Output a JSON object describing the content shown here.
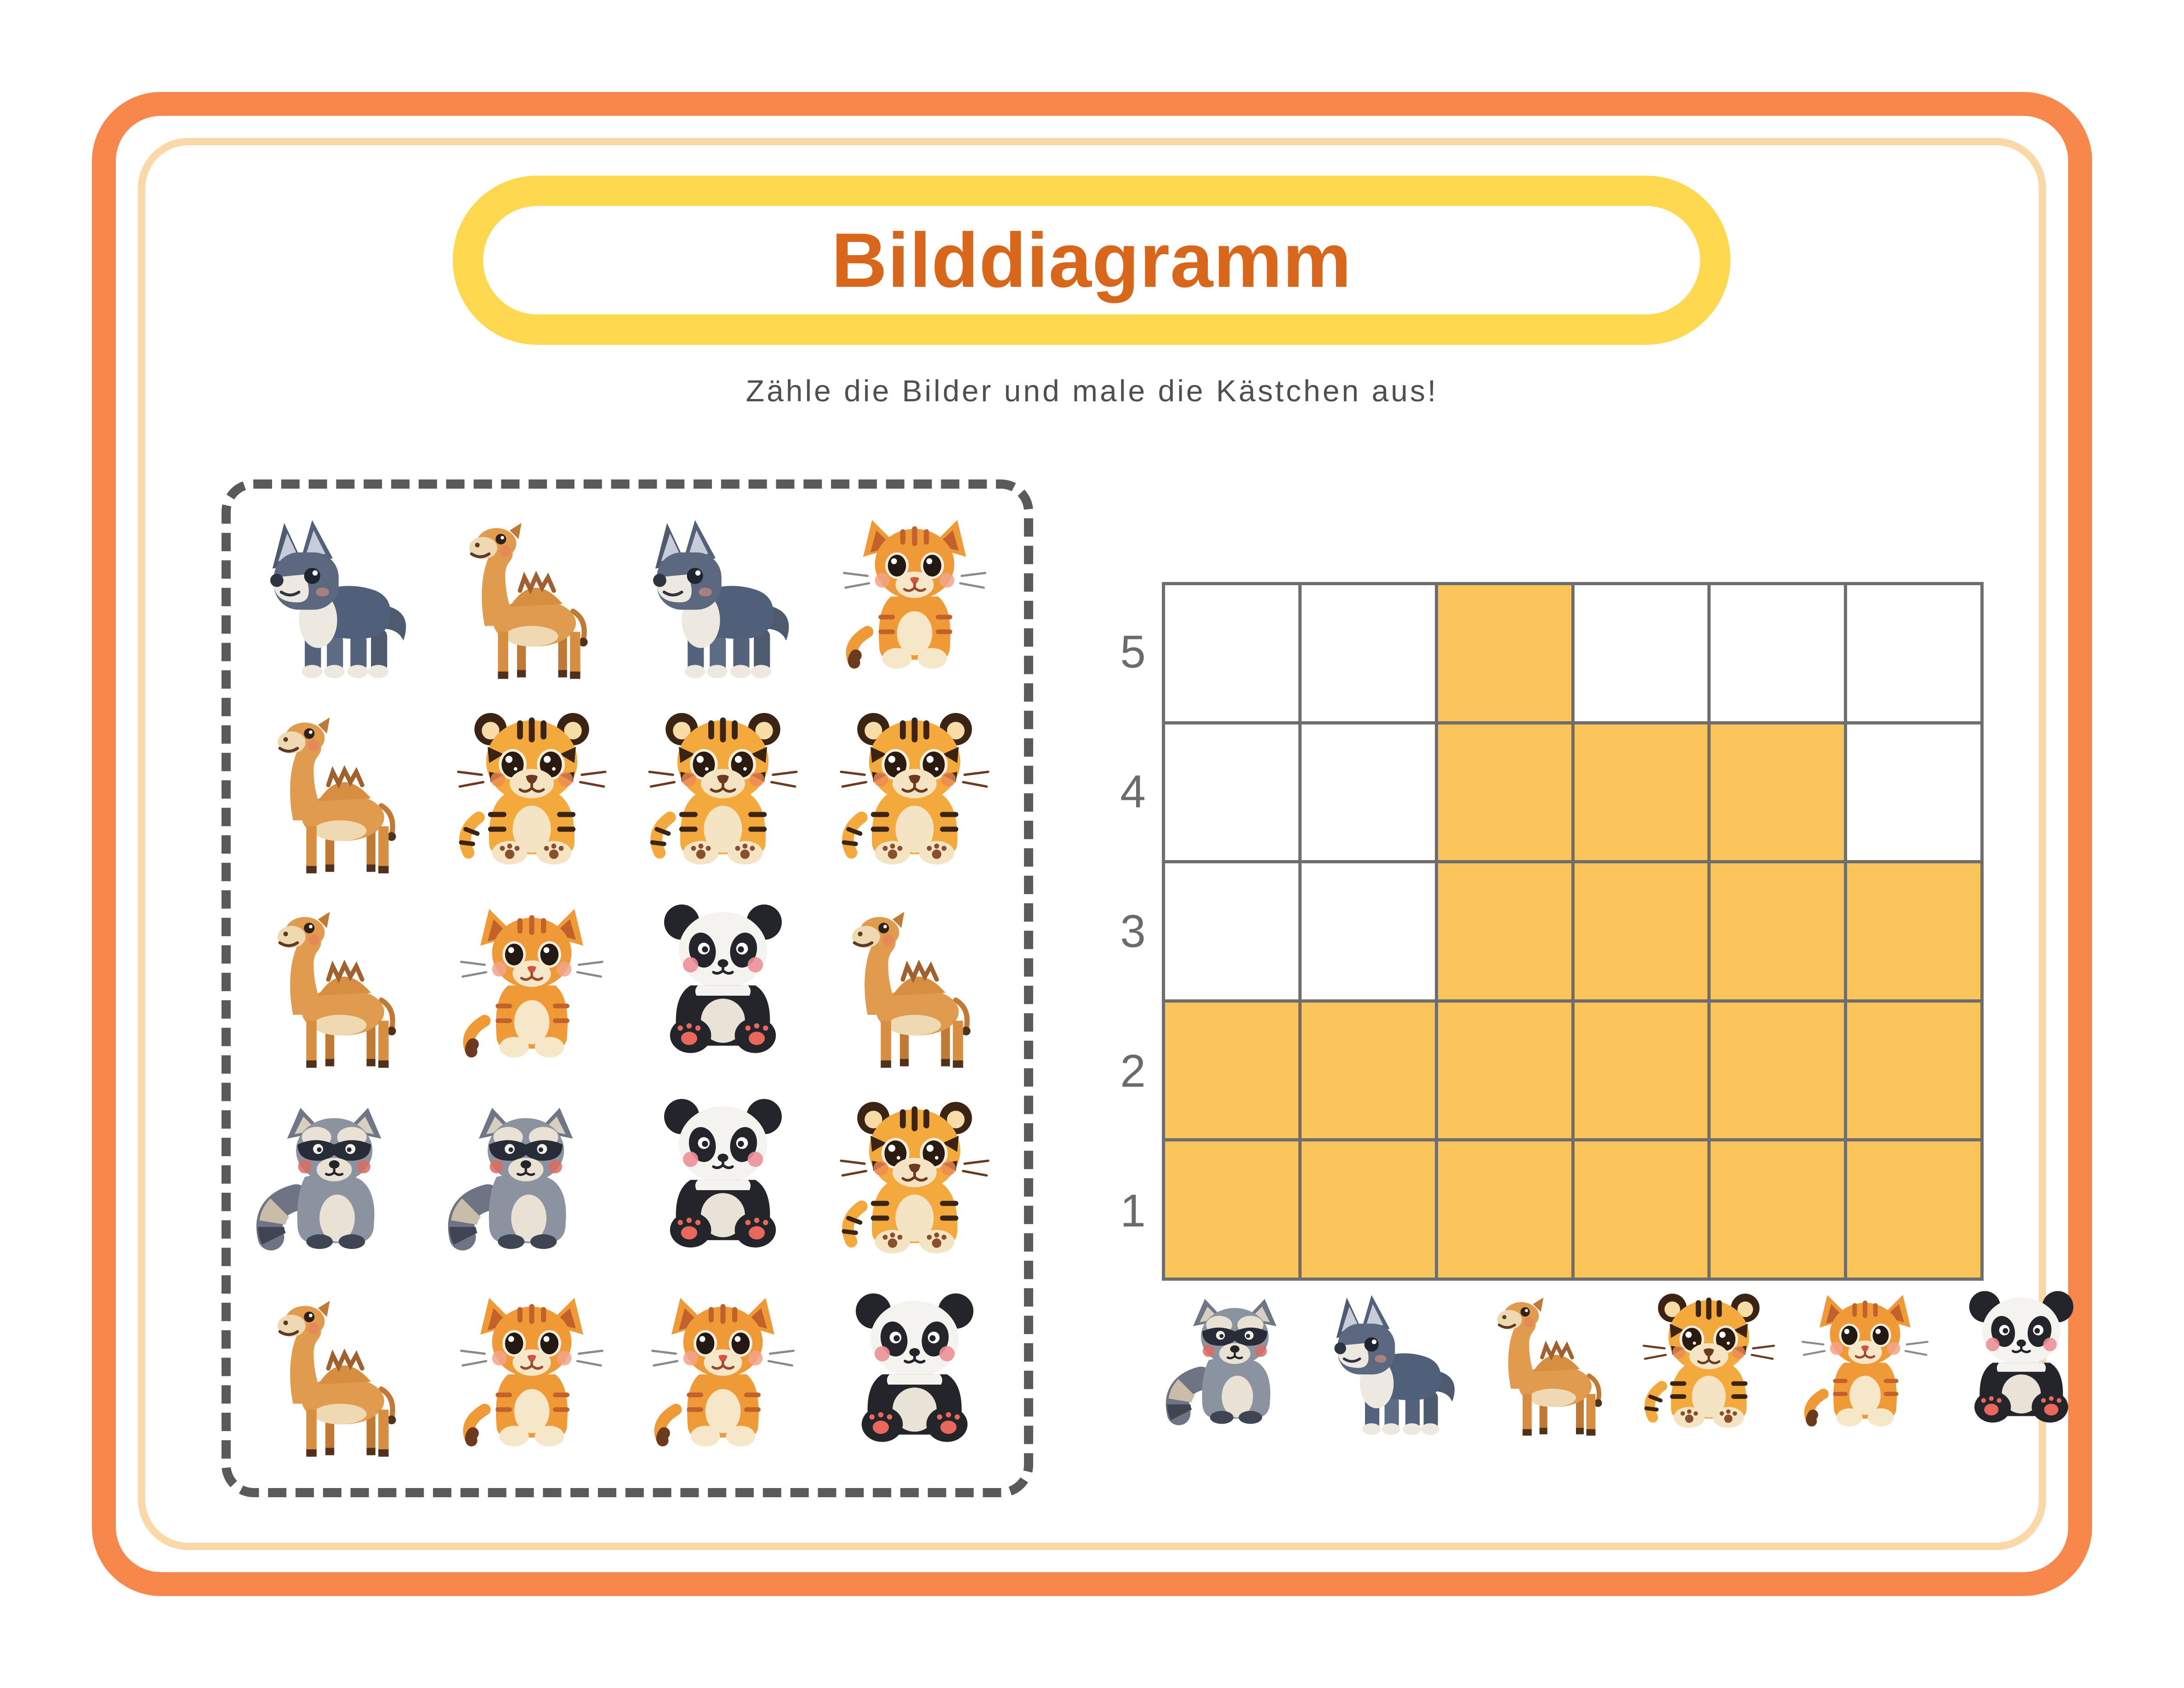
{
  "title": "Bilddiagramm",
  "subtitle": "Zähle die Bilder und male die Kästchen aus!",
  "colors": {
    "frame_orange": "#F8874B",
    "frame_peach": "#FBD8A7",
    "pill_yellow": "#FED84F",
    "title_orange": "#D8671B",
    "subtitle_gray": "#4F4F4F",
    "axis_label_gray": "#6B6B6B",
    "grid_line_gray": "#6E6E6E",
    "cell_fill_yellow": "#FBC55C",
    "dashed_border_gray": "#5A5A5A"
  },
  "picture_box": {
    "rows": [
      [
        "wolf",
        "camel",
        "wolf",
        "cat"
      ],
      [
        "camel",
        "tiger",
        "tiger",
        "tiger"
      ],
      [
        "camel",
        "cat",
        "panda",
        "camel"
      ],
      [
        "raccoon",
        "raccoon",
        "panda",
        "tiger"
      ],
      [
        "camel",
        "cat",
        "cat",
        "panda"
      ]
    ]
  },
  "chart": {
    "y_values": [
      5,
      4,
      3,
      2,
      1
    ]
  },
  "chart_data": {
    "type": "bar",
    "style": "pictograph-grid-coloring",
    "categories": [
      "raccoon",
      "wolf",
      "camel",
      "tiger",
      "cat",
      "panda"
    ],
    "values": [
      2,
      2,
      5,
      4,
      4,
      3
    ],
    "title": "Bilddiagramm",
    "xlabel": "",
    "ylabel": "",
    "ylim": [
      0,
      5
    ],
    "y_ticks": [
      1,
      2,
      3,
      4,
      5
    ],
    "grid": true,
    "legend": "none",
    "filled_color": "#FBC55C"
  }
}
